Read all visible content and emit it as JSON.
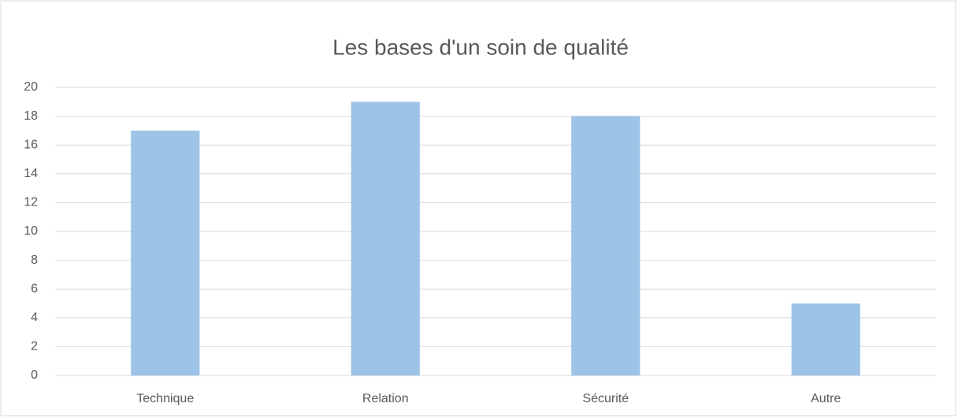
{
  "chart_data": {
    "type": "bar",
    "title": "Les bases d'un soin de qualité",
    "categories": [
      "Technique",
      "Relation",
      "Sécurité",
      "Autre"
    ],
    "values": [
      17,
      19,
      18,
      5
    ],
    "color": "#9dc3e6",
    "ylim": [
      0,
      20
    ],
    "yticks": [
      0,
      2,
      4,
      6,
      8,
      10,
      12,
      14,
      16,
      18,
      20
    ],
    "grid": true
  }
}
